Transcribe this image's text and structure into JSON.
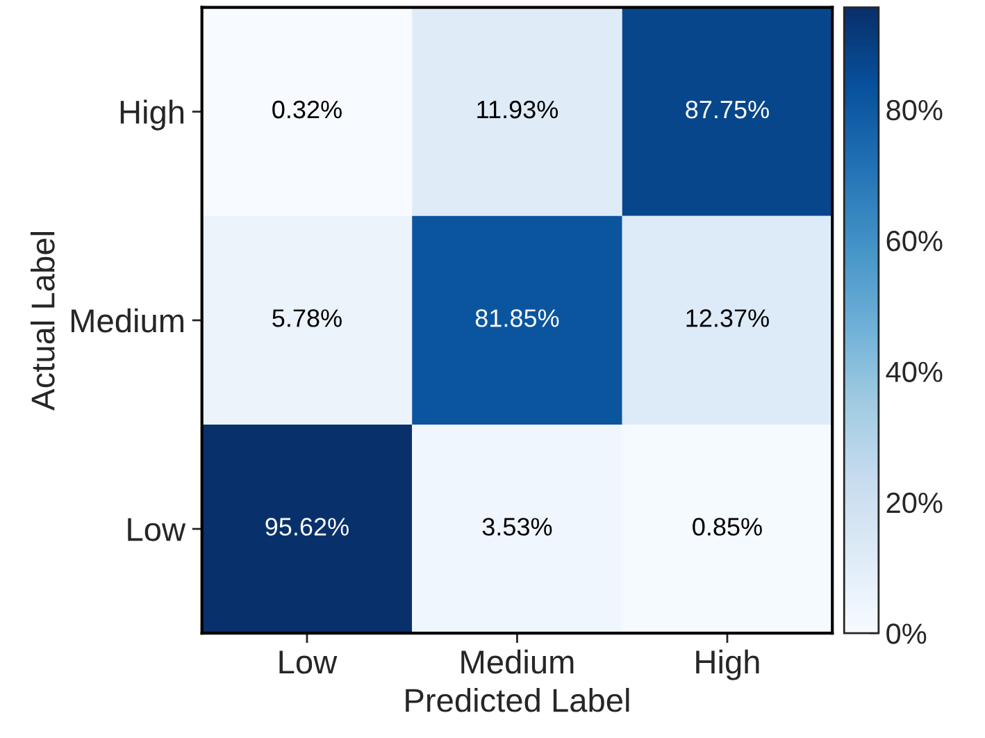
{
  "chart_data": {
    "type": "heatmap",
    "xlabel": "Predicted Label",
    "ylabel": "Actual Label",
    "categories": [
      "Low",
      "Medium",
      "High"
    ],
    "y_categories": [
      "High",
      "Medium",
      "Low"
    ],
    "cells": [
      [
        0.32,
        11.93,
        87.75
      ],
      [
        5.78,
        81.85,
        12.37
      ],
      [
        95.62,
        3.53,
        0.85
      ]
    ],
    "cell_labels": [
      [
        "0.32%",
        "11.93%",
        "87.75%"
      ],
      [
        "5.78%",
        "81.85%",
        "12.37%"
      ],
      [
        "95.62%",
        "3.53%",
        "0.85%"
      ]
    ],
    "clim": [
      0,
      95.62
    ],
    "cticks": [
      {
        "value": 0,
        "label": "0%"
      },
      {
        "value": 20,
        "label": "20%"
      },
      {
        "value": 40,
        "label": "40%"
      },
      {
        "value": 60,
        "label": "60%"
      },
      {
        "value": 80,
        "label": "80%"
      }
    ]
  }
}
